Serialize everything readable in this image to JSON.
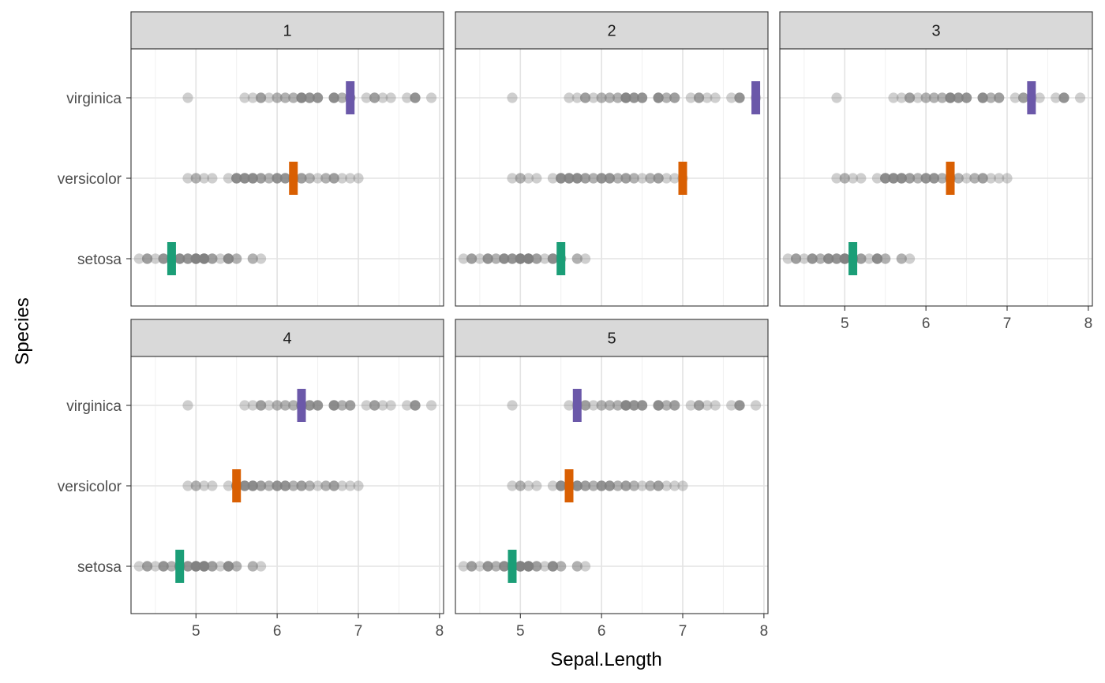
{
  "chart_data": {
    "type": "scatter",
    "facet_by": "fold",
    "facets": [
      "1",
      "2",
      "3",
      "4",
      "5"
    ],
    "xlabel": "Sepal.Length",
    "ylabel": "Species",
    "categories": [
      "setosa",
      "versicolor",
      "virginica"
    ],
    "xlim": [
      4.2,
      8.05
    ],
    "x_ticks": [
      5,
      6,
      7,
      8
    ],
    "grid": true,
    "points_color": "#808080",
    "points_opacity": 0.38,
    "species_colors": {
      "setosa": "#1b9e77",
      "versicolor": "#d95f02",
      "virginica": "#6b58a9"
    },
    "observations": {
      "setosa": [
        4.3,
        4.4,
        4.4,
        4.4,
        4.5,
        4.6,
        4.6,
        4.6,
        4.6,
        4.7,
        4.7,
        4.8,
        4.8,
        4.8,
        4.8,
        4.8,
        4.9,
        4.9,
        4.9,
        4.9,
        5.0,
        5.0,
        5.0,
        5.0,
        5.0,
        5.0,
        5.0,
        5.0,
        5.1,
        5.1,
        5.1,
        5.1,
        5.1,
        5.1,
        5.1,
        5.1,
        5.2,
        5.2,
        5.2,
        5.3,
        5.4,
        5.4,
        5.4,
        5.4,
        5.4,
        5.5,
        5.5,
        5.7,
        5.7,
        5.8
      ],
      "versicolor": [
        4.9,
        5.0,
        5.0,
        5.1,
        5.2,
        5.4,
        5.5,
        5.5,
        5.5,
        5.5,
        5.5,
        5.6,
        5.6,
        5.6,
        5.6,
        5.6,
        5.7,
        5.7,
        5.7,
        5.7,
        5.7,
        5.8,
        5.8,
        5.8,
        5.9,
        5.9,
        6.0,
        6.0,
        6.0,
        6.0,
        6.1,
        6.1,
        6.1,
        6.1,
        6.2,
        6.2,
        6.3,
        6.3,
        6.3,
        6.4,
        6.4,
        6.5,
        6.6,
        6.6,
        6.7,
        6.7,
        6.7,
        6.8,
        6.9,
        7.0
      ],
      "virginica": [
        4.9,
        5.6,
        5.7,
        5.8,
        5.8,
        5.8,
        5.9,
        6.0,
        6.0,
        6.1,
        6.1,
        6.2,
        6.2,
        6.3,
        6.3,
        6.3,
        6.3,
        6.3,
        6.3,
        6.4,
        6.4,
        6.4,
        6.4,
        6.5,
        6.5,
        6.5,
        6.5,
        6.7,
        6.7,
        6.7,
        6.7,
        6.7,
        6.8,
        6.8,
        6.9,
        6.9,
        6.9,
        7.1,
        7.2,
        7.2,
        7.2,
        7.3,
        7.4,
        7.6,
        7.7,
        7.7,
        7.7,
        7.7,
        7.9
      ]
    },
    "markers": [
      {
        "facet": "1",
        "setosa": 4.7,
        "versicolor": 6.2,
        "virginica": 6.9
      },
      {
        "facet": "2",
        "setosa": 5.5,
        "versicolor": 7.0,
        "virginica": 7.9
      },
      {
        "facet": "3",
        "setosa": 5.1,
        "versicolor": 6.3,
        "virginica": 7.3
      },
      {
        "facet": "4",
        "setosa": 4.8,
        "versicolor": 5.5,
        "virginica": 6.3
      },
      {
        "facet": "5",
        "setosa": 4.9,
        "versicolor": 5.6,
        "virginica": 5.7
      }
    ]
  }
}
